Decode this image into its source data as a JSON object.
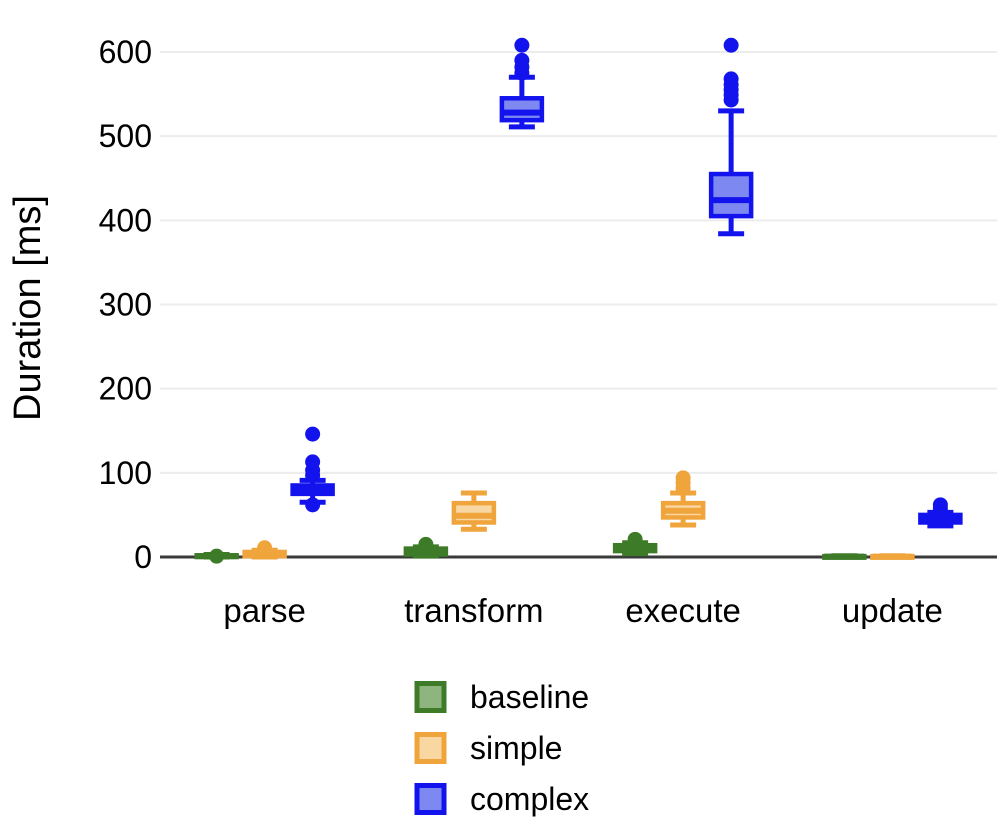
{
  "figure": {
    "background": "#ffffff",
    "axis_color": "#3a3a3a",
    "grid_color": "#ececec",
    "text_color": "#000000"
  },
  "chart_data": {
    "type": "boxplot",
    "title": "",
    "xlabel": "",
    "ylabel": "Duration [ms]",
    "categories": [
      "parse",
      "transform",
      "execute",
      "update"
    ],
    "yticks": [
      0,
      100,
      200,
      300,
      400,
      500,
      600
    ],
    "ylim": [
      0,
      650
    ],
    "grid": "horizontal",
    "legend_position": "bottom",
    "legend_entries": [
      {
        "label": "baseline",
        "fill": "#8fb57e",
        "stroke": "#3e7b28"
      },
      {
        "label": "simple",
        "fill": "#f8d7a2",
        "stroke": "#f0a43c"
      },
      {
        "label": "complex",
        "fill": "#7d89f1",
        "stroke": "#1313ee"
      }
    ],
    "series": [
      {
        "name": "baseline",
        "stroke": "#3e7b28",
        "fill": "#8fb57e",
        "boxes": [
          {
            "category": "parse",
            "whisker_low": 0,
            "q1": 0,
            "median": 1,
            "q3": 2,
            "whisker_high": 3,
            "outliers": [
              1
            ]
          },
          {
            "category": "transform",
            "whisker_low": 1,
            "q1": 3,
            "median": 6,
            "q3": 10,
            "whisker_high": 12,
            "outliers": [
              15
            ]
          },
          {
            "category": "execute",
            "whisker_low": 4,
            "q1": 7,
            "median": 10,
            "q3": 14,
            "whisker_high": 17,
            "outliers": [
              21
            ]
          },
          {
            "category": "update",
            "whisker_low": 0,
            "q1": 0,
            "median": 0.5,
            "q3": 1,
            "whisker_high": 1.5,
            "outliers": []
          }
        ]
      },
      {
        "name": "simple",
        "stroke": "#f0a43c",
        "fill": "#f8d7a2",
        "boxes": [
          {
            "category": "parse",
            "whisker_low": 0,
            "q1": 1,
            "median": 3,
            "q3": 6,
            "whisker_high": 8,
            "outliers": [
              11
            ]
          },
          {
            "category": "transform",
            "whisker_low": 33,
            "q1": 41,
            "median": 49,
            "q3": 64,
            "whisker_high": 76,
            "outliers": []
          },
          {
            "category": "execute",
            "whisker_low": 38,
            "q1": 47,
            "median": 55,
            "q3": 64,
            "whisker_high": 76,
            "outliers": [
              82,
              88,
              94
            ]
          },
          {
            "category": "update",
            "whisker_low": 0,
            "q1": 0,
            "median": 0.5,
            "q3": 1,
            "whisker_high": 1.5,
            "outliers": []
          }
        ]
      },
      {
        "name": "complex",
        "stroke": "#1313ee",
        "fill": "#7d89f1",
        "boxes": [
          {
            "category": "parse",
            "whisker_low": 65,
            "q1": 75,
            "median": 80,
            "q3": 85,
            "whisker_high": 91,
            "outliers": [
              62,
              97,
              103,
              113,
              146
            ]
          },
          {
            "category": "transform",
            "whisker_low": 511,
            "q1": 519,
            "median": 528,
            "q3": 545,
            "whisker_high": 570,
            "outliers": [
              575,
              582,
              590,
              608
            ]
          },
          {
            "category": "execute",
            "whisker_low": 384,
            "q1": 405,
            "median": 424,
            "q3": 455,
            "whisker_high": 530,
            "outliers": [
              543,
              549,
              555,
              561,
              568,
              608
            ]
          },
          {
            "category": "update",
            "whisker_low": 37,
            "q1": 41,
            "median": 45,
            "q3": 50,
            "whisker_high": 53,
            "outliers": [
              58,
              62
            ]
          }
        ]
      }
    ]
  }
}
